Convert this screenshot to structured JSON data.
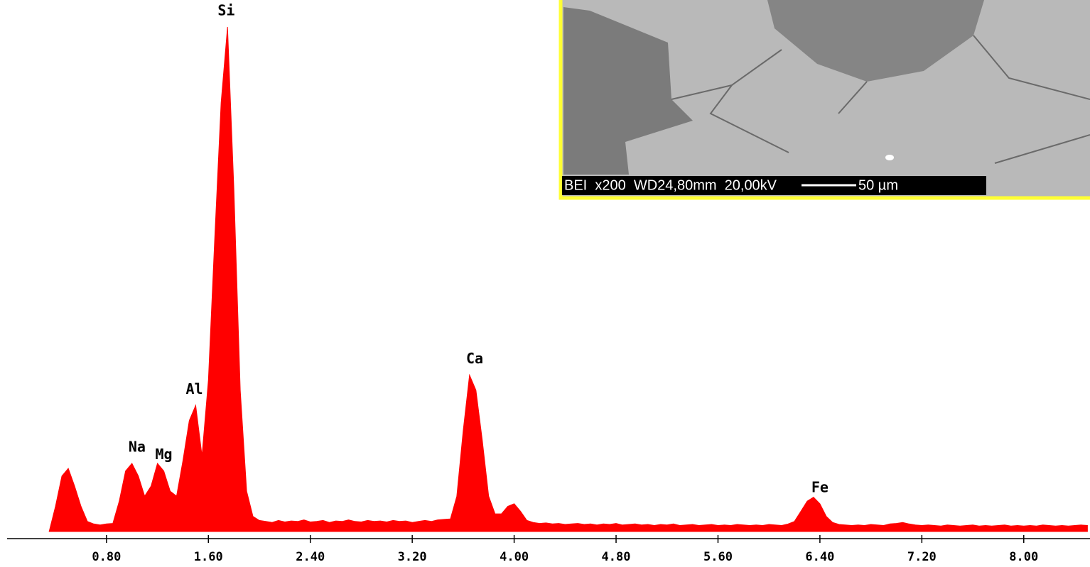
{
  "chart_data": {
    "type": "area",
    "color": "#ff0000",
    "x": [
      0.35,
      0.4,
      0.45,
      0.5,
      0.55,
      0.6,
      0.65,
      0.7,
      0.75,
      0.8,
      0.85,
      0.9,
      0.95,
      1,
      1.05,
      1.1,
      1.15,
      1.2,
      1.25,
      1.3,
      1.35,
      1.4,
      1.45,
      1.5,
      1.55,
      1.6,
      1.65,
      1.7,
      1.75,
      1.8,
      1.85,
      1.9,
      1.95,
      2,
      2.05,
      2.1,
      2.15,
      2.2,
      2.25,
      2.3,
      2.35,
      2.4,
      2.45,
      2.5,
      2.55,
      2.6,
      2.65,
      2.7,
      2.75,
      2.8,
      2.85,
      2.9,
      2.95,
      3,
      3.05,
      3.1,
      3.15,
      3.2,
      3.25,
      3.3,
      3.35,
      3.4,
      3.45,
      3.5,
      3.55,
      3.6,
      3.65,
      3.7,
      3.75,
      3.8,
      3.85,
      3.9,
      3.95,
      4,
      4.05,
      4.1,
      4.15,
      4.2,
      4.25,
      4.3,
      4.35,
      4.4,
      4.45,
      4.5,
      4.55,
      4.6,
      4.65,
      4.7,
      4.75,
      4.8,
      4.85,
      4.9,
      4.95,
      5,
      5.05,
      5.1,
      5.15,
      5.2,
      5.25,
      5.3,
      5.35,
      5.4,
      5.45,
      5.5,
      5.55,
      5.6,
      5.65,
      5.7,
      5.75,
      5.8,
      5.85,
      5.9,
      5.95,
      6,
      6.05,
      6.1,
      6.15,
      6.2,
      6.25,
      6.3,
      6.35,
      6.4,
      6.45,
      6.5,
      6.55,
      6.6,
      6.65,
      6.7,
      6.75,
      6.8,
      6.85,
      6.9,
      6.95,
      7,
      7.05,
      7.1,
      7.15,
      7.2,
      7.25,
      7.3,
      7.35,
      7.4,
      7.45,
      7.5,
      7.55,
      7.6,
      7.65,
      7.7,
      7.75,
      7.8,
      7.85,
      7.9,
      7.95,
      8,
      8.05,
      8.1,
      8.15,
      8.2,
      8.25,
      8.3,
      8.35,
      8.4,
      8.45,
      8.5
    ],
    "values": [
      0,
      5,
      11,
      12.5,
      9,
      5,
      2,
      1.5,
      1.3,
      1.5,
      1.6,
      6,
      12,
      13.5,
      11,
      7,
      9,
      13.5,
      12,
      8,
      7,
      14,
      22,
      25,
      15,
      30,
      58,
      85,
      100,
      68,
      28,
      8,
      3,
      2.2,
      2,
      1.8,
      2.2,
      1.9,
      2.1,
      2,
      2.3,
      1.9,
      2,
      2.2,
      1.8,
      2.1,
      2,
      2.3,
      2,
      1.9,
      2.2,
      2,
      2.1,
      1.9,
      2.2,
      2,
      2.1,
      1.8,
      2,
      2.2,
      2,
      2.3,
      2.4,
      2.5,
      7,
      20,
      31,
      28,
      18,
      7,
      3.5,
      3.5,
      5,
      5.5,
      4,
      2.2,
      1.8,
      1.6,
      1.7,
      1.5,
      1.6,
      1.4,
      1.5,
      1.6,
      1.4,
      1.5,
      1.3,
      1.5,
      1.4,
      1.6,
      1.3,
      1.4,
      1.5,
      1.3,
      1.4,
      1.2,
      1.4,
      1.3,
      1.5,
      1.2,
      1.3,
      1.4,
      1.2,
      1.3,
      1.4,
      1.2,
      1.3,
      1.2,
      1.4,
      1.3,
      1.2,
      1.3,
      1.2,
      1.4,
      1.3,
      1.2,
      1.5,
      2,
      4,
      6,
      6.8,
      5.5,
      3,
      1.8,
      1.4,
      1.3,
      1.2,
      1.3,
      1.2,
      1.4,
      1.3,
      1.2,
      1.5,
      1.6,
      1.8,
      1.5,
      1.3,
      1.2,
      1.3,
      1.2,
      1.1,
      1.3,
      1.2,
      1.1,
      1.2,
      1.3,
      1.1,
      1.2,
      1.1,
      1.2,
      1.3,
      1.1,
      1.2,
      1.1,
      1.2,
      1.1,
      1.3,
      1.2,
      1.1,
      1.2,
      1.1,
      1.2,
      1.3,
      1.2
    ],
    "xlim": [
      0.02,
      8.52
    ],
    "ylim": [
      0,
      100
    ],
    "xticks": [
      {
        "value": 0.8,
        "label": "0.80"
      },
      {
        "value": 1.6,
        "label": "1.60"
      },
      {
        "value": 2.4,
        "label": "2.40"
      },
      {
        "value": 3.2,
        "label": "3.20"
      },
      {
        "value": 4.0,
        "label": "4.00"
      },
      {
        "value": 4.8,
        "label": "4.80"
      },
      {
        "value": 5.6,
        "label": "5.60"
      },
      {
        "value": 6.4,
        "label": "6.40"
      },
      {
        "value": 7.2,
        "label": "7.20"
      },
      {
        "value": 8.0,
        "label": "8.00"
      }
    ],
    "annotations": [
      {
        "text": "Na",
        "x": 1.04
      },
      {
        "text": "Mg",
        "x": 1.25
      },
      {
        "text": "Al",
        "x": 1.49
      },
      {
        "text": "Si",
        "x": 1.74
      },
      {
        "text": "Ca",
        "x": 3.69
      },
      {
        "text": "Fe",
        "x": 6.4
      }
    ]
  },
  "inset": {
    "caption": "BEI  x200  WD24,80mm  20,00kV",
    "scale": "50 µm"
  }
}
